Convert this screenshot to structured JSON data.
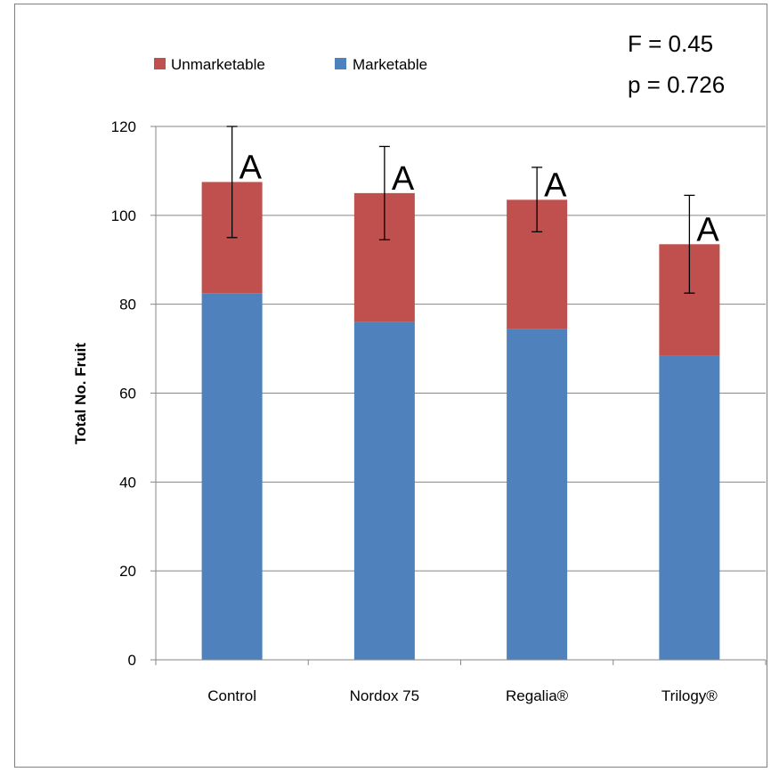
{
  "chart_data": {
    "type": "bar",
    "stacked": true,
    "categories": [
      "Control",
      "Nordox 75",
      "Regalia®",
      "Trilogy®"
    ],
    "series": [
      {
        "name": "Marketable",
        "color": "#4F81BD",
        "values": [
          82.5,
          76,
          74.5,
          68.5
        ]
      },
      {
        "name": "Unmarketable",
        "color": "#C0504D",
        "values": [
          25,
          29,
          29,
          25
        ]
      }
    ],
    "totals": [
      107.5,
      105,
      103.5,
      93.5
    ],
    "error_bars": [
      {
        "low": 95,
        "high": 120
      },
      {
        "low": 94.5,
        "high": 115.5
      },
      {
        "low": 96.3,
        "high": 110.8
      },
      {
        "low": 82.5,
        "high": 104.5
      }
    ],
    "significance_letters": [
      "A",
      "A",
      "A",
      "A"
    ],
    "ylabel": "Total No. Fruit",
    "xlabel": "",
    "ylim": [
      0,
      120
    ],
    "yticks": [
      0,
      20,
      40,
      60,
      80,
      100,
      120
    ],
    "grid": true,
    "legend_order": [
      "Unmarketable",
      "Marketable"
    ],
    "legend_position": "top-left",
    "annotations": {
      "f_stat": "F = 0.45",
      "p_value": "p = 0.726"
    }
  }
}
